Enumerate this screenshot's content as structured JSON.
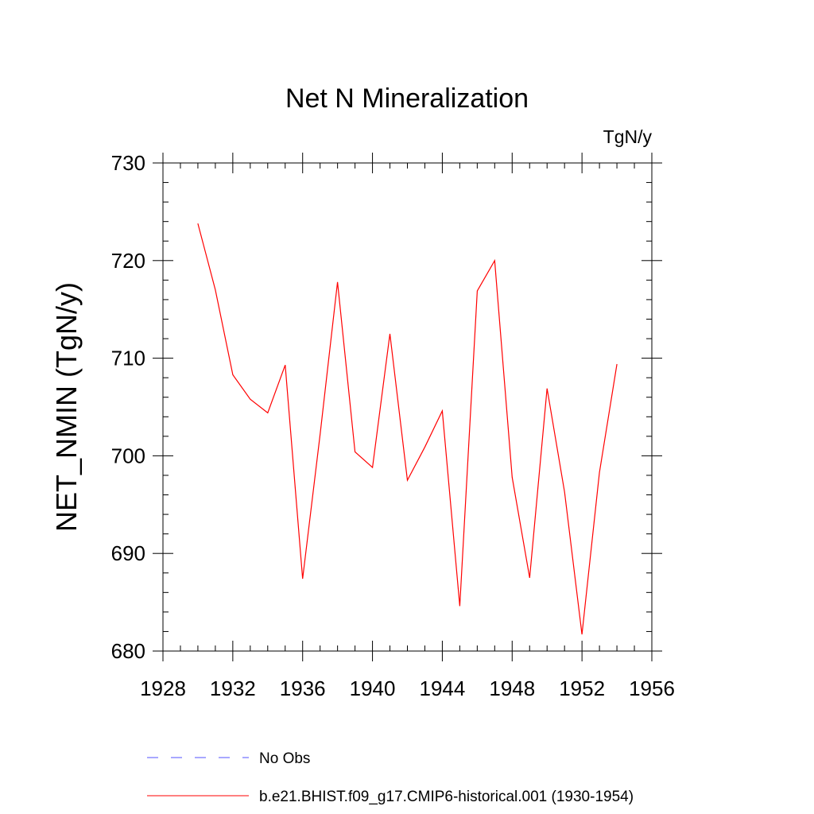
{
  "chart_data": {
    "type": "line",
    "title": "Net N Mineralization",
    "units": "TgN/y",
    "ylabel": "NET_NMIN  (TgN/y)",
    "xlabel": "",
    "xlim": [
      1928,
      1956
    ],
    "ylim": [
      680,
      730
    ],
    "x_ticks": [
      1928,
      1932,
      1936,
      1940,
      1944,
      1948,
      1952,
      1956
    ],
    "y_ticks": [
      680,
      690,
      700,
      710,
      720,
      730
    ],
    "x_tick_labels": [
      "1928",
      "1932",
      "1936",
      "1940",
      "1944",
      "1948",
      "1952",
      "1956"
    ],
    "y_tick_labels": [
      "680",
      "690",
      "700",
      "710",
      "720",
      "730"
    ],
    "grid": false,
    "legend_position": "bottom",
    "series": [
      {
        "name": "b.e21.BHIST.f09_g17.CMIP6-historical.001 (1930-1954)",
        "color": "#ff0000",
        "style": "solid",
        "x": [
          1930,
          1931,
          1932,
          1933,
          1934,
          1935,
          1936,
          1937,
          1938,
          1939,
          1940,
          1941,
          1942,
          1943,
          1944,
          1945,
          1946,
          1947,
          1948,
          1949,
          1950,
          1951,
          1952,
          1953,
          1954
        ],
        "y": [
          723.8,
          717.0,
          708.3,
          705.8,
          704.4,
          709.3,
          687.4,
          702.2,
          717.8,
          700.4,
          698.8,
          712.5,
          697.5,
          700.9,
          704.6,
          684.6,
          716.9,
          720.0,
          697.8,
          687.5,
          706.9,
          696.3,
          681.7,
          698.3,
          709.4
        ]
      }
    ],
    "legend": [
      {
        "label": "No Obs",
        "color": "#5050ff",
        "style": "dashed"
      },
      {
        "label": "b.e21.BHIST.f09_g17.CMIP6-historical.001 (1930-1954)",
        "color": "#ff0000",
        "style": "solid"
      }
    ]
  }
}
